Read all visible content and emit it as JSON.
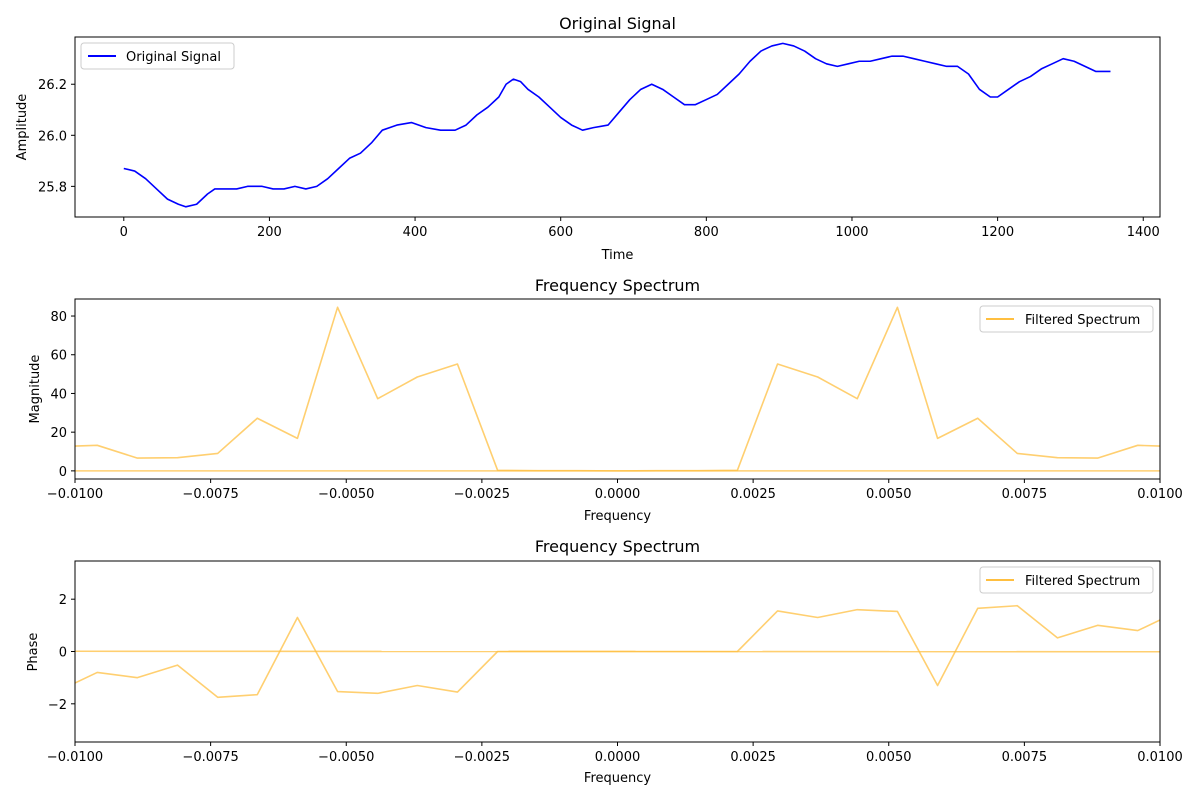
{
  "colors": {
    "signal": "#0000ff",
    "spectrum": "#ffbf40",
    "axes": "#000000",
    "background": "#ffffff"
  },
  "chart_data": [
    {
      "type": "line",
      "title": "Original Signal",
      "xlabel": "Time",
      "ylabel": "Amplitude",
      "xlim": [
        -67,
        1423
      ],
      "ylim": [
        25.68,
        26.385
      ],
      "xticks": [
        0,
        200,
        400,
        600,
        800,
        1000,
        1200,
        1400
      ],
      "xtick_labels": [
        "0",
        "200",
        "400",
        "600",
        "800",
        "1000",
        "1200",
        "1400"
      ],
      "yticks": [
        25.8,
        26.0,
        26.2
      ],
      "ytick_labels": [
        "25.8",
        "26.0",
        "26.2"
      ],
      "legend": "top-left",
      "grid": false,
      "series": [
        {
          "name": "Original Signal",
          "color": "#0000ff",
          "x": [
            0,
            15,
            30,
            45,
            60,
            75,
            85,
            100,
            115,
            125,
            140,
            155,
            170,
            190,
            205,
            220,
            235,
            250,
            265,
            280,
            295,
            310,
            325,
            340,
            355,
            375,
            395,
            415,
            435,
            455,
            470,
            485,
            500,
            515,
            525,
            535,
            545,
            555,
            570,
            585,
            600,
            615,
            630,
            645,
            665,
            680,
            695,
            710,
            725,
            740,
            755,
            770,
            785,
            800,
            815,
            830,
            845,
            860,
            875,
            890,
            905,
            920,
            935,
            950,
            965,
            980,
            995,
            1010,
            1025,
            1040,
            1055,
            1070,
            1085,
            1100,
            1115,
            1130,
            1145,
            1160,
            1175,
            1190,
            1200,
            1215,
            1230,
            1245,
            1260,
            1275,
            1290,
            1305,
            1320,
            1335,
            1355
          ],
          "values": [
            25.87,
            25.86,
            25.83,
            25.79,
            25.75,
            25.73,
            25.72,
            25.73,
            25.77,
            25.79,
            25.79,
            25.79,
            25.8,
            25.8,
            25.79,
            25.79,
            25.8,
            25.79,
            25.8,
            25.83,
            25.87,
            25.91,
            25.93,
            25.97,
            26.02,
            26.04,
            26.05,
            26.03,
            26.02,
            26.02,
            26.04,
            26.08,
            26.11,
            26.15,
            26.2,
            26.22,
            26.21,
            26.18,
            26.15,
            26.11,
            26.07,
            26.04,
            26.02,
            26.03,
            26.04,
            26.09,
            26.14,
            26.18,
            26.2,
            26.18,
            26.15,
            26.12,
            26.12,
            26.14,
            26.16,
            26.2,
            26.24,
            26.29,
            26.33,
            26.35,
            26.36,
            26.35,
            26.33,
            26.3,
            26.28,
            26.27,
            26.28,
            26.29,
            26.29,
            26.3,
            26.31,
            26.31,
            26.3,
            26.29,
            26.28,
            26.27,
            26.27,
            26.24,
            26.18,
            26.15,
            26.15,
            26.18,
            26.21,
            26.23,
            26.26,
            26.28,
            26.3,
            26.29,
            26.27,
            26.25,
            26.25
          ]
        }
      ]
    },
    {
      "type": "line",
      "title": "Frequency Spectrum",
      "xlabel": "Frequency",
      "ylabel": "Magnitude",
      "xlim": [
        -0.01,
        0.01
      ],
      "ylim": [
        -4.2,
        88.8
      ],
      "xticks": [
        -0.01,
        -0.0075,
        -0.005,
        -0.0025,
        0.0,
        0.0025,
        0.005,
        0.0075,
        0.01
      ],
      "xtick_labels": [
        "−0.0100",
        "−0.0075",
        "−0.0050",
        "−0.0025",
        "0.0000",
        "0.0025",
        "0.0050",
        "0.0075",
        "0.0100"
      ],
      "yticks": [
        0,
        20,
        40,
        60,
        80
      ],
      "ytick_labels": [
        "0",
        "20",
        "40",
        "60",
        "80"
      ],
      "legend": "top-right",
      "grid": false,
      "series": [
        {
          "name": "Filtered Spectrum",
          "color": "#ffbf40",
          "x": [
            -0.0103,
            -0.00959,
            -0.00885,
            -0.00811,
            -0.00737,
            -0.00664,
            -0.0059,
            -0.00516,
            -0.00442,
            -0.00369,
            -0.00295,
            -0.00221,
            -0.00148,
            -0.00074,
            0.0,
            0.00074,
            0.00148,
            0.00221,
            0.00295,
            0.00369,
            0.00442,
            0.00516,
            0.0059,
            0.00664,
            0.00737,
            0.00811,
            0.00885,
            0.00959,
            0.0103
          ],
          "values": [
            12.5,
            13.2,
            6.6,
            6.8,
            9.0,
            27.2,
            16.8,
            84.5,
            37.3,
            48.5,
            55.2,
            0.3,
            0.1,
            0.1,
            0.0,
            0.1,
            0.1,
            0.3,
            55.2,
            48.5,
            37.3,
            84.5,
            16.8,
            27.2,
            9.0,
            6.8,
            6.6,
            13.2,
            12.5
          ]
        },
        {
          "name": "Filtered Spectrum",
          "color": "#ffbf40",
          "x": [
            -0.0103,
            0.0103
          ],
          "values": [
            0.0,
            0.0
          ]
        }
      ]
    },
    {
      "type": "line",
      "title": "Frequency Spectrum",
      "xlabel": "Frequency",
      "ylabel": "Phase",
      "xlim": [
        -0.01,
        0.01
      ],
      "ylim": [
        -3.46,
        3.46
      ],
      "xticks": [
        -0.01,
        -0.0075,
        -0.005,
        -0.0025,
        0.0,
        0.0025,
        0.005,
        0.0075,
        0.01
      ],
      "xtick_labels": [
        "−0.0100",
        "−0.0075",
        "−0.0050",
        "−0.0025",
        "0.0000",
        "0.0025",
        "0.0050",
        "0.0075",
        "0.0100"
      ],
      "yticks": [
        -2,
        0,
        2
      ],
      "ytick_labels": [
        "−2",
        "0",
        "2"
      ],
      "legend": "top-right",
      "grid": false,
      "series": [
        {
          "name": "Filtered Spectrum",
          "color": "#ffbf40",
          "x": [
            -0.0103,
            -0.00959,
            -0.00885,
            -0.00811,
            -0.00737,
            -0.00664,
            -0.0059,
            -0.00516,
            -0.00442,
            -0.00369,
            -0.00295,
            -0.00221,
            -0.00148,
            -0.00074,
            0.0,
            0.00074,
            0.00148,
            0.00221,
            0.00295,
            0.00369,
            0.00442,
            0.00516,
            0.0059,
            0.00664,
            0.00737,
            0.00811,
            0.00885,
            0.00959,
            0.0103
          ],
          "values": [
            -1.5,
            -0.8,
            -1.0,
            -0.52,
            -1.75,
            -1.65,
            1.3,
            -1.53,
            -1.6,
            -1.3,
            -1.55,
            0.0,
            0.0,
            0.0,
            0.0,
            0.0,
            0.0,
            0.0,
            1.55,
            1.3,
            1.6,
            1.53,
            -1.3,
            1.65,
            1.75,
            0.52,
            1.0,
            0.8,
            1.5
          ]
        },
        {
          "name": "Filtered Spectrum",
          "color": "#ffbf40",
          "x": [
            -0.0103,
            0.0103
          ],
          "values": [
            0.01,
            -0.01
          ]
        }
      ]
    }
  ]
}
